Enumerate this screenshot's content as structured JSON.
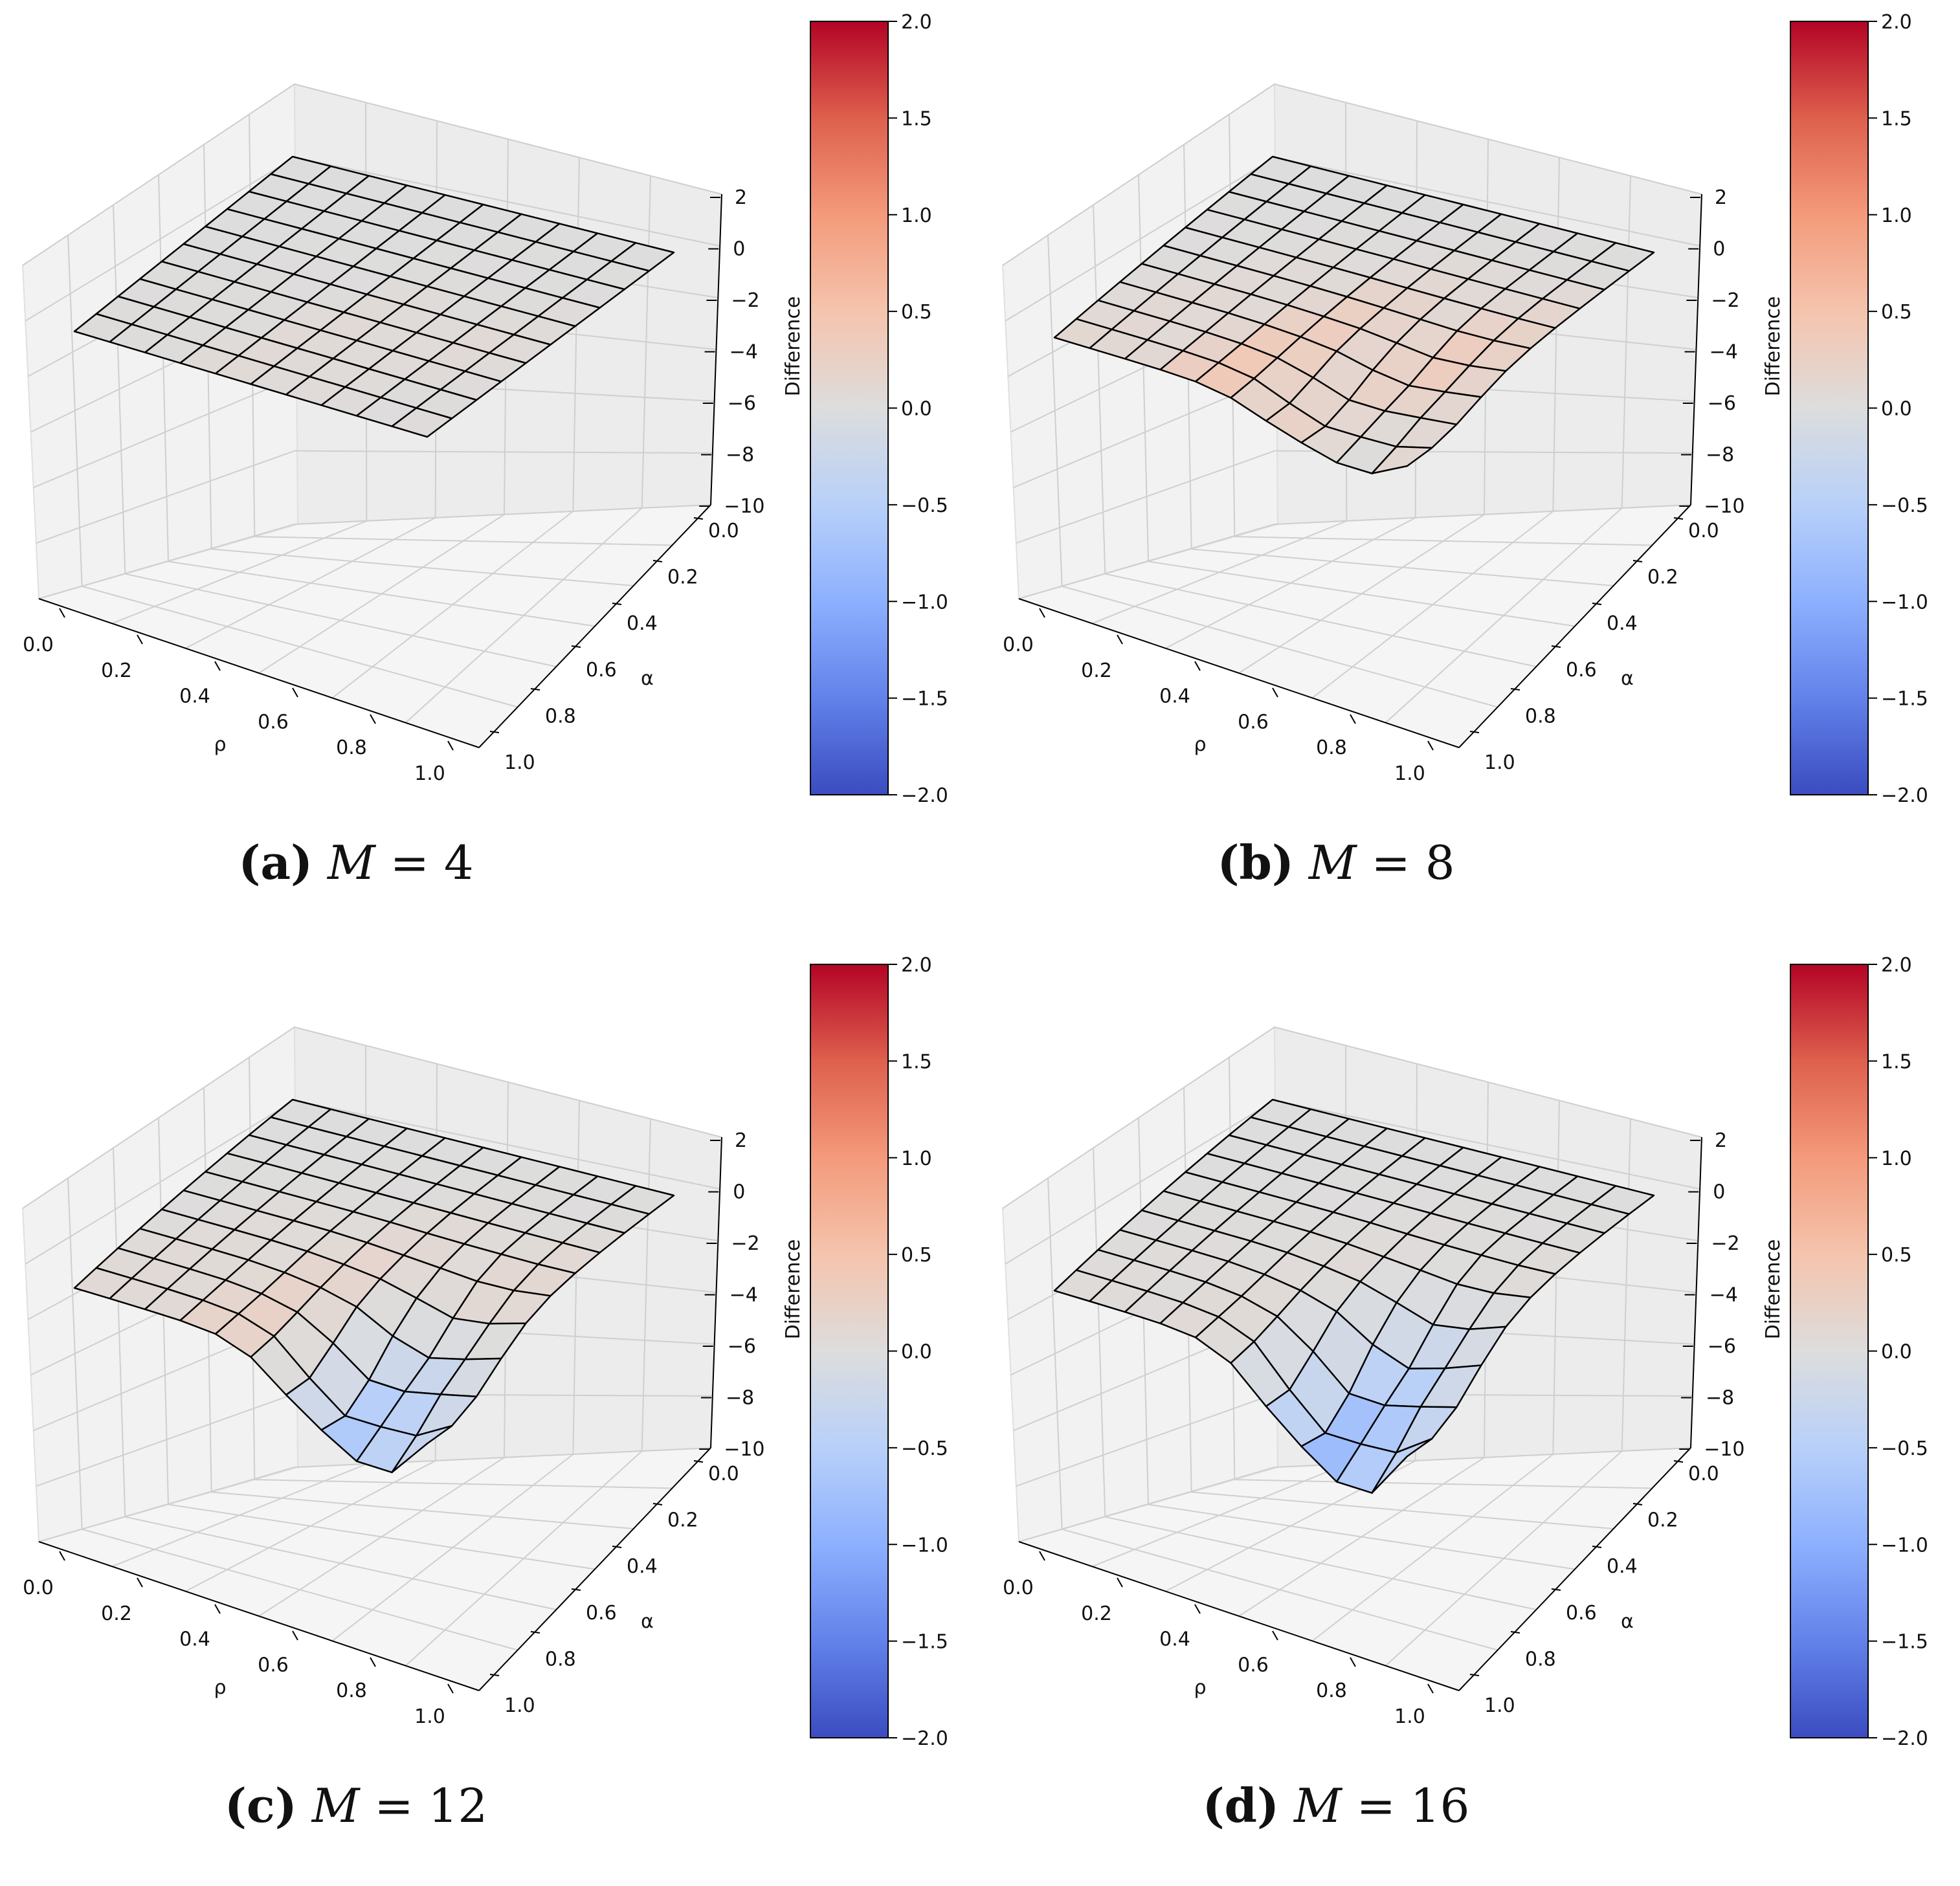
{
  "chart_data": [
    {
      "type": "surface3d",
      "label": "(a)",
      "title_var": "M",
      "title_eq": "= 4",
      "xlabel": "ρ",
      "ylabel": "α",
      "zlabel": "Difference",
      "x": [
        0.0,
        0.1,
        0.2,
        0.3,
        0.4,
        0.5,
        0.6,
        0.7,
        0.8,
        0.9,
        1.0
      ],
      "y": [
        0.0,
        0.1,
        0.2,
        0.3,
        0.4,
        0.5,
        0.6,
        0.7,
        0.8,
        0.9,
        1.0
      ],
      "xticks": [
        "0.0",
        "0.2",
        "0.4",
        "0.6",
        "0.8",
        "1.0"
      ],
      "yticks": [
        "0.0",
        "0.2",
        "0.4",
        "0.6",
        "0.8",
        "1.0"
      ],
      "zticks": [
        "2",
        "0",
        "−2",
        "−4",
        "−6",
        "−8",
        "−10"
      ],
      "zlim": [
        -10,
        2
      ],
      "colorbar_ticks": [
        "2.0",
        "1.5",
        "1.0",
        "0.5",
        "0.0",
        "−0.5",
        "−1.0",
        "−1.5",
        "−2.0"
      ],
      "clim": [
        -2,
        2
      ],
      "colormap": "coolwarm",
      "dip": {
        "depth": 0,
        "warm": 0.12,
        "cool": 0
      }
    },
    {
      "type": "surface3d",
      "label": "(b)",
      "title_var": "M",
      "title_eq": "= 8",
      "xlabel": "ρ",
      "ylabel": "α",
      "zlabel": "Difference",
      "x": [
        0.0,
        0.1,
        0.2,
        0.3,
        0.4,
        0.5,
        0.6,
        0.7,
        0.8,
        0.9,
        1.0
      ],
      "y": [
        0.0,
        0.1,
        0.2,
        0.3,
        0.4,
        0.5,
        0.6,
        0.7,
        0.8,
        0.9,
        1.0
      ],
      "xticks": [
        "0.0",
        "0.2",
        "0.4",
        "0.6",
        "0.8",
        "1.0"
      ],
      "yticks": [
        "0.0",
        "0.2",
        "0.4",
        "0.6",
        "0.8",
        "1.0"
      ],
      "zticks": [
        "2",
        "0",
        "−2",
        "−4",
        "−6",
        "−8",
        "−10"
      ],
      "zlim": [
        -10,
        2
      ],
      "colorbar_ticks": [
        "2.0",
        "1.5",
        "1.0",
        "0.5",
        "0.0",
        "−0.5",
        "−1.0",
        "−1.5",
        "−2.0"
      ],
      "clim": [
        -2,
        2
      ],
      "colormap": "coolwarm",
      "dip": {
        "depth": 1.6,
        "warm": 0.55,
        "cool": 0.05
      }
    },
    {
      "type": "surface3d",
      "label": "(c)",
      "title_var": "M",
      "title_eq": "= 12",
      "xlabel": "ρ",
      "ylabel": "α",
      "zlabel": "Difference",
      "x": [
        0.0,
        0.1,
        0.2,
        0.3,
        0.4,
        0.5,
        0.6,
        0.7,
        0.8,
        0.9,
        1.0
      ],
      "y": [
        0.0,
        0.1,
        0.2,
        0.3,
        0.4,
        0.5,
        0.6,
        0.7,
        0.8,
        0.9,
        1.0
      ],
      "xticks": [
        "0.0",
        "0.2",
        "0.4",
        "0.6",
        "0.8",
        "1.0"
      ],
      "yticks": [
        "0.0",
        "0.2",
        "0.4",
        "0.6",
        "0.8",
        "1.0"
      ],
      "zticks": [
        "2",
        "0",
        "−2",
        "−4",
        "−6",
        "−8",
        "−10"
      ],
      "zlim": [
        -10,
        2
      ],
      "colorbar_ticks": [
        "2.0",
        "1.5",
        "1.0",
        "0.5",
        "0.0",
        "−0.5",
        "−1.0",
        "−1.5",
        "−2.0"
      ],
      "clim": [
        -2,
        2
      ],
      "colormap": "coolwarm",
      "dip": {
        "depth": 3.5,
        "warm": 0.4,
        "cool": 0.6
      }
    },
    {
      "type": "surface3d",
      "label": "(d)",
      "title_var": "M",
      "title_eq": "= 16",
      "xlabel": "ρ",
      "ylabel": "α",
      "zlabel": "Difference",
      "x": [
        0.0,
        0.1,
        0.2,
        0.3,
        0.4,
        0.5,
        0.6,
        0.7,
        0.8,
        0.9,
        1.0
      ],
      "y": [
        0.0,
        0.1,
        0.2,
        0.3,
        0.4,
        0.5,
        0.6,
        0.7,
        0.8,
        0.9,
        1.0
      ],
      "xticks": [
        "0.0",
        "0.2",
        "0.4",
        "0.6",
        "0.8",
        "1.0"
      ],
      "yticks": [
        "0.0",
        "0.2",
        "0.4",
        "0.6",
        "0.8",
        "1.0"
      ],
      "zticks": [
        "2",
        "0",
        "−2",
        "−4",
        "−6",
        "−8",
        "−10"
      ],
      "zlim": [
        -10,
        2
      ],
      "colorbar_ticks": [
        "2.0",
        "1.5",
        "1.0",
        "0.5",
        "0.0",
        "−0.5",
        "−1.0",
        "−1.5",
        "−2.0"
      ],
      "clim": [
        -2,
        2
      ],
      "colormap": "coolwarm",
      "dip": {
        "depth": 4.2,
        "warm": 0.2,
        "cool": 0.75
      }
    }
  ]
}
